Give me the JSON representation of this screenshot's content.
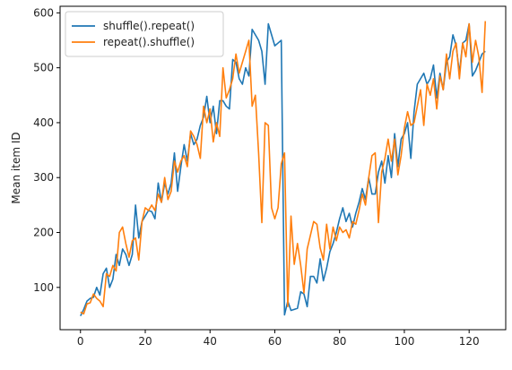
{
  "chart_data": {
    "type": "line",
    "title": "",
    "xlabel": "",
    "ylabel": "Mean item ID",
    "xlim": [
      -6.3,
      131.3
    ],
    "ylim": [
      23,
      612
    ],
    "xticks": [
      0,
      20,
      40,
      60,
      80,
      100,
      120
    ],
    "yticks": [
      100,
      200,
      300,
      400,
      500,
      600
    ],
    "grid": false,
    "legend": "upper-left",
    "series": [
      {
        "name": "shuffle().repeat()",
        "color": "#1f77b4",
        "x": [
          0,
          1,
          2,
          3,
          4,
          5,
          6,
          7,
          8,
          9,
          10,
          11,
          12,
          13,
          14,
          15,
          16,
          17,
          18,
          19,
          20,
          21,
          22,
          23,
          24,
          25,
          26,
          27,
          28,
          29,
          30,
          31,
          32,
          33,
          34,
          35,
          36,
          37,
          38,
          39,
          40,
          41,
          42,
          43,
          44,
          45,
          46,
          47,
          48,
          49,
          50,
          51,
          52,
          53,
          54,
          55,
          56,
          57,
          58,
          59,
          60,
          61,
          62,
          63,
          64,
          65,
          66,
          67,
          68,
          69,
          70,
          71,
          72,
          73,
          74,
          75,
          76,
          77,
          78,
          79,
          80,
          81,
          82,
          83,
          84,
          85,
          86,
          87,
          88,
          89,
          90,
          91,
          92,
          93,
          94,
          95,
          96,
          97,
          98,
          99,
          100,
          101,
          102,
          103,
          104,
          105,
          106,
          107,
          108,
          109,
          110,
          111,
          112,
          113,
          114,
          115,
          116,
          117,
          118,
          119,
          120,
          121,
          122,
          123,
          124,
          125
        ],
        "values": [
          48,
          60,
          75,
          80,
          82,
          100,
          86,
          125,
          135,
          100,
          115,
          160,
          140,
          170,
          160,
          140,
          160,
          250,
          190,
          220,
          230,
          240,
          238,
          225,
          290,
          255,
          290,
          270,
          290,
          345,
          275,
          320,
          360,
          330,
          380,
          360,
          370,
          395,
          410,
          448,
          400,
          430,
          380,
          440,
          440,
          430,
          425,
          515,
          510,
          480,
          470,
          500,
          485,
          570,
          560,
          550,
          530,
          470,
          580,
          560,
          540,
          545,
          550,
          50,
          75,
          58,
          60,
          62,
          92,
          88,
          65,
          120,
          120,
          108,
          152,
          112,
          135,
          165,
          180,
          200,
          225,
          245,
          220,
          235,
          210,
          235,
          255,
          280,
          260,
          300,
          270,
          270,
          310,
          330,
          290,
          340,
          300,
          380,
          320,
          370,
          380,
          400,
          335,
          420,
          470,
          480,
          490,
          470,
          480,
          505,
          445,
          490,
          460,
          510,
          520,
          560,
          540,
          490,
          545,
          550,
          580,
          485,
          495,
          510,
          525,
          530
        ]
      },
      {
        "name": "repeat().shuffle()",
        "color": "#ff7f0e",
        "x": [
          0,
          1,
          2,
          3,
          4,
          5,
          6,
          7,
          8,
          9,
          10,
          11,
          12,
          13,
          14,
          15,
          16,
          17,
          18,
          19,
          20,
          21,
          22,
          23,
          24,
          25,
          26,
          27,
          28,
          29,
          30,
          31,
          32,
          33,
          34,
          35,
          36,
          37,
          38,
          39,
          40,
          41,
          42,
          43,
          44,
          45,
          46,
          47,
          48,
          49,
          50,
          51,
          52,
          53,
          54,
          55,
          56,
          57,
          58,
          59,
          60,
          61,
          62,
          63,
          64,
          65,
          66,
          67,
          68,
          69,
          70,
          71,
          72,
          73,
          74,
          75,
          76,
          77,
          78,
          79,
          80,
          81,
          82,
          83,
          84,
          85,
          86,
          87,
          88,
          89,
          90,
          91,
          92,
          93,
          94,
          95,
          96,
          97,
          98,
          99,
          100,
          101,
          102,
          103,
          104,
          105,
          106,
          107,
          108,
          109,
          110,
          111,
          112,
          113,
          114,
          115,
          116,
          117,
          118,
          119,
          120,
          121,
          122,
          123,
          124,
          125
        ],
        "values": [
          55,
          52,
          70,
          72,
          88,
          80,
          75,
          65,
          125,
          120,
          140,
          130,
          200,
          210,
          180,
          155,
          185,
          190,
          150,
          220,
          245,
          240,
          250,
          240,
          270,
          255,
          300,
          260,
          275,
          330,
          310,
          330,
          340,
          320,
          385,
          375,
          360,
          335,
          430,
          400,
          425,
          365,
          400,
          375,
          500,
          445,
          460,
          480,
          525,
          490,
          510,
          530,
          550,
          430,
          450,
          345,
          218,
          400,
          395,
          245,
          225,
          245,
          325,
          345,
          65,
          230,
          142,
          180,
          140,
          90,
          170,
          195,
          220,
          215,
          172,
          150,
          215,
          170,
          210,
          185,
          210,
          200,
          205,
          190,
          220,
          215,
          240,
          270,
          250,
          300,
          340,
          345,
          218,
          310,
          335,
          370,
          330,
          370,
          305,
          340,
          390,
          420,
          395,
          400,
          430,
          460,
          395,
          470,
          450,
          480,
          425,
          485,
          460,
          525,
          480,
          530,
          545,
          480,
          545,
          520,
          580,
          510,
          550,
          520,
          455,
          585
        ]
      }
    ]
  }
}
